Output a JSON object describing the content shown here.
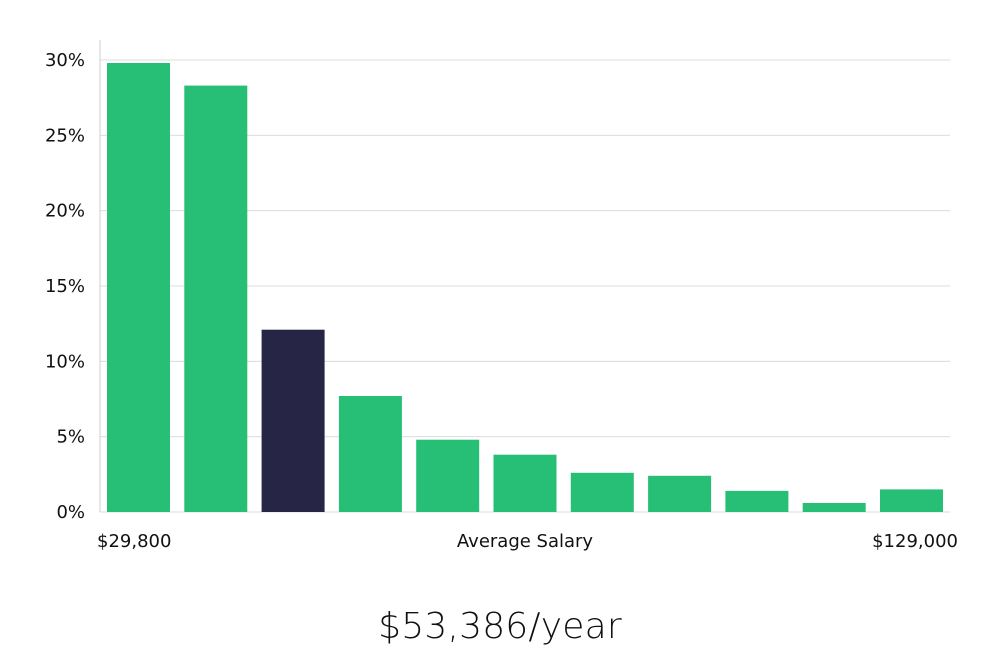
{
  "chart_data": {
    "type": "bar",
    "values": [
      29.8,
      28.3,
      12.1,
      7.7,
      4.8,
      3.8,
      2.6,
      2.4,
      1.4,
      0.6,
      1.5
    ],
    "highlight_index": 2,
    "ylim": [
      0,
      30
    ],
    "y_ticks": [
      0,
      5,
      10,
      15,
      20,
      25,
      30
    ],
    "y_tick_format": "{v}%",
    "x_min_label": "$29,800",
    "x_max_label": "$129,000",
    "xlabel": "Average Salary",
    "grid": true,
    "colors": {
      "bar": "#27be76",
      "highlight": "#272546",
      "grid": "#dcdcdc",
      "axis": "#cfcfcf"
    }
  },
  "headline": "$53,386/year"
}
